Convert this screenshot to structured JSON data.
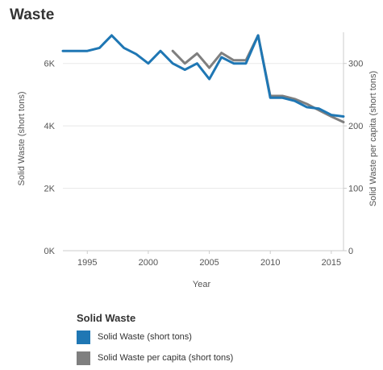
{
  "title": "Waste",
  "colors": {
    "primary": "#1f77b4",
    "secondary": "#7f7f7f"
  },
  "chart_data": {
    "type": "line",
    "title": "Waste",
    "xlabel": "Year",
    "ylabel_left": "Solid Waste (short tons)",
    "ylabel_right": "Solid Waste per capita (short tons)",
    "xlim": [
      1993,
      2016
    ],
    "ylim_left": [
      0,
      7000
    ],
    "ylim_right": [
      0,
      350
    ],
    "x_ticks": [
      "1995",
      "2000",
      "2005",
      "2010",
      "2015"
    ],
    "y_left_ticks": [
      "0K",
      "2K",
      "4K",
      "6K"
    ],
    "y_right_ticks": [
      "0",
      "100",
      "200",
      "300"
    ],
    "grid": true,
    "legend_position": "bottom",
    "series": [
      {
        "name": "Solid Waste (short tons)",
        "axis": "left",
        "color": "#1f77b4",
        "x": [
          1993,
          1994,
          1995,
          1996,
          1997,
          1998,
          1999,
          2000,
          2001,
          2002,
          2003,
          2004,
          2005,
          2006,
          2007,
          2008,
          2009,
          2010,
          2011,
          2012,
          2013,
          2014,
          2015,
          2016
        ],
        "y": [
          6400,
          6400,
          6400,
          6500,
          6900,
          6500,
          6300,
          6000,
          6400,
          6000,
          5800,
          6000,
          5500,
          6200,
          6000,
          6000,
          6900,
          4900,
          4900,
          4800,
          4600,
          4550,
          4350,
          4300
        ]
      },
      {
        "name": "Solid Waste per capita (short tons)",
        "axis": "right",
        "color": "#7f7f7f",
        "x": [
          2002,
          2003,
          2004,
          2005,
          2006,
          2007,
          2008,
          2009,
          2010,
          2011,
          2012,
          2013,
          2014,
          2015,
          2016
        ],
        "y": [
          320,
          300,
          316,
          293,
          317,
          305,
          305,
          345,
          248,
          248,
          243,
          235,
          225,
          215,
          206
        ]
      }
    ]
  },
  "legend": {
    "title": "Solid Waste",
    "items": [
      {
        "label": "Solid Waste (short tons)",
        "color": "#1f77b4"
      },
      {
        "label": "Solid Waste per capita (short tons)",
        "color": "#7f7f7f"
      }
    ]
  }
}
